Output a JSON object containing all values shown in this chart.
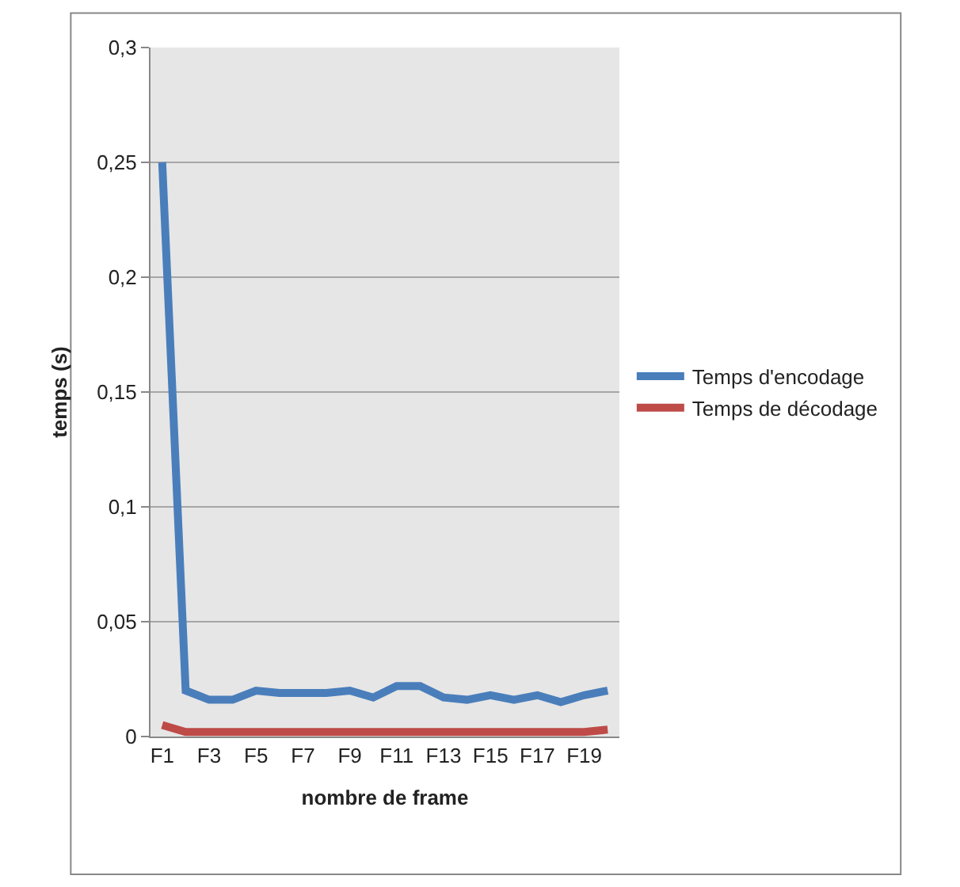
{
  "chart_data": {
    "type": "line",
    "xlabel": "nombre de frame",
    "ylabel": "temps (s)",
    "categories": [
      "F1",
      null,
      "F3",
      null,
      "F5",
      null,
      "F7",
      null,
      "F9",
      null,
      "F11",
      null,
      "F13",
      null,
      "F15",
      null,
      "F17",
      null,
      "F19",
      null
    ],
    "series": [
      {
        "name": "Temps d'encodage",
        "color": "#4a7ebb",
        "values": [
          0.25,
          0.02,
          0.016,
          0.016,
          0.02,
          0.019,
          0.019,
          0.019,
          0.02,
          0.017,
          0.022,
          0.022,
          0.017,
          0.016,
          0.018,
          0.016,
          0.018,
          0.015,
          0.018,
          0.02
        ]
      },
      {
        "name": "Temps de décodage",
        "color": "#be4b48",
        "values": [
          0.005,
          0.002,
          0.002,
          0.002,
          0.002,
          0.002,
          0.002,
          0.002,
          0.002,
          0.002,
          0.002,
          0.002,
          0.002,
          0.002,
          0.002,
          0.002,
          0.002,
          0.002,
          0.002,
          0.003
        ]
      }
    ],
    "ylim": [
      0,
      0.3
    ],
    "yticks": [
      0,
      {
        "value": 0.05,
        "label": "0,05"
      },
      {
        "value": 0.1,
        "label": "0,1"
      },
      {
        "value": 0.15,
        "label": "0,15"
      },
      {
        "value": 0.2,
        "label": "0,2"
      },
      {
        "value": 0.25,
        "label": "0,25"
      },
      {
        "value": 0.3,
        "label": "0,3"
      }
    ],
    "grid": "y",
    "legend": "right",
    "marker": "none",
    "line_style": "solid"
  }
}
